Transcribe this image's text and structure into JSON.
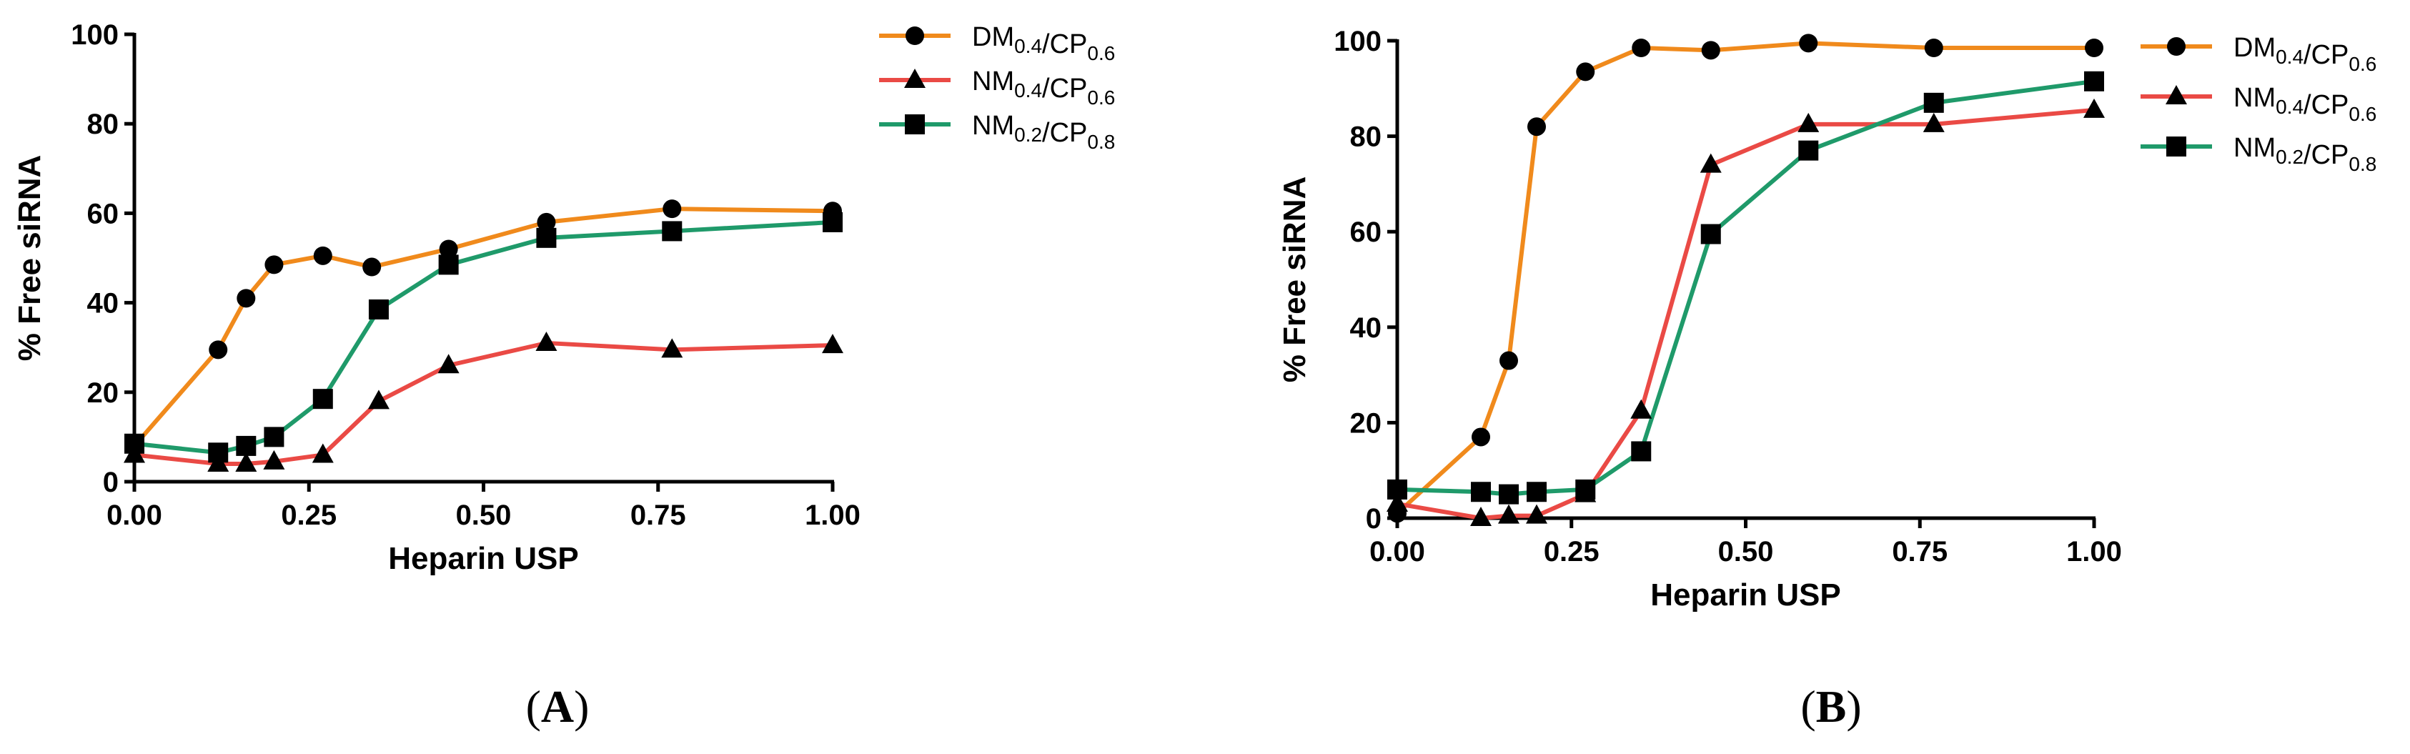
{
  "chart_data": [
    {
      "type": "line",
      "panel_label": "(A)",
      "panel_label_letter": "A",
      "xlabel": "Heparin USP",
      "ylabel": "% Free siRNA",
      "xlim": [
        0,
        1
      ],
      "ylim": [
        0,
        100
      ],
      "x_ticks": [
        "0.00",
        "0.25",
        "0.50",
        "0.75",
        "1.00"
      ],
      "y_ticks": [
        "0",
        "20",
        "40",
        "60",
        "80",
        "100"
      ],
      "legend_position": "top-right",
      "series": [
        {
          "name": "DM0.4/CP0.6",
          "label_parts": [
            [
              "DM",
              "0.4"
            ],
            [
              "/CP",
              "0.6"
            ]
          ],
          "marker": "circle",
          "color": "#f08a1c",
          "points": [
            [
              0,
              8
            ],
            [
              0.12,
              29.5
            ],
            [
              0.16,
              41
            ],
            [
              0.2,
              48.5
            ],
            [
              0.27,
              50.5
            ],
            [
              0.34,
              48
            ],
            [
              0.45,
              52
            ],
            [
              0.59,
              58
            ],
            [
              0.77,
              61
            ],
            [
              1.0,
              60.5
            ]
          ]
        },
        {
          "name": "NM0.4/CP0.6",
          "label_parts": [
            [
              "NM",
              "0.4"
            ],
            [
              "/CP",
              "0.6"
            ]
          ],
          "marker": "triangle",
          "color": "#ea4a45",
          "points": [
            [
              0,
              6
            ],
            [
              0.12,
              4
            ],
            [
              0.16,
              4
            ],
            [
              0.2,
              4.5
            ],
            [
              0.27,
              6
            ],
            [
              0.35,
              18
            ],
            [
              0.45,
              26
            ],
            [
              0.59,
              31
            ],
            [
              0.77,
              29.5
            ],
            [
              1.0,
              30.5
            ]
          ]
        },
        {
          "name": "NM0.2/CP0.8",
          "label_parts": [
            [
              "NM",
              "0.2"
            ],
            [
              "/CP",
              "0.8"
            ]
          ],
          "marker": "square",
          "color": "#1f9a6a",
          "points": [
            [
              0,
              8.5
            ],
            [
              0.12,
              6.5
            ],
            [
              0.16,
              8
            ],
            [
              0.2,
              10
            ],
            [
              0.27,
              18.5
            ],
            [
              0.35,
              38.5
            ],
            [
              0.45,
              48.5
            ],
            [
              0.59,
              54.5
            ],
            [
              0.77,
              56
            ],
            [
              1.0,
              58
            ]
          ]
        }
      ]
    },
    {
      "type": "line",
      "panel_label": "(B)",
      "panel_label_letter": "B",
      "xlabel": "Heparin USP",
      "ylabel": "% Free siRNA",
      "xlim": [
        0,
        1
      ],
      "ylim": [
        0,
        100
      ],
      "x_ticks": [
        "0.00",
        "0.25",
        "0.50",
        "0.75",
        "1.00"
      ],
      "y_ticks": [
        "0",
        "20",
        "40",
        "60",
        "80",
        "100"
      ],
      "legend_position": "top-right",
      "series": [
        {
          "name": "DM0.4/CP0.6",
          "label_parts": [
            [
              "DM",
              "0.4"
            ],
            [
              "/CP",
              "0.6"
            ]
          ],
          "marker": "circle",
          "color": "#f08a1c",
          "points": [
            [
              0,
              1
            ],
            [
              0.12,
              17
            ],
            [
              0.16,
              33
            ],
            [
              0.2,
              82
            ],
            [
              0.27,
              93.5
            ],
            [
              0.35,
              98.5
            ],
            [
              0.45,
              98
            ],
            [
              0.59,
              99.5
            ],
            [
              0.77,
              98.5
            ],
            [
              1.0,
              98.5
            ]
          ]
        },
        {
          "name": "NM0.4/CP0.6",
          "label_parts": [
            [
              "NM",
              "0.4"
            ],
            [
              "/CP",
              "0.6"
            ]
          ],
          "marker": "triangle",
          "color": "#ea4a45",
          "points": [
            [
              0,
              3
            ],
            [
              0.12,
              0
            ],
            [
              0.16,
              0.5
            ],
            [
              0.2,
              0.5
            ],
            [
              0.27,
              5
            ],
            [
              0.35,
              22.5
            ],
            [
              0.45,
              74
            ],
            [
              0.59,
              82.5
            ],
            [
              0.77,
              82.5
            ],
            [
              1.0,
              85.5
            ]
          ]
        },
        {
          "name": "NM0.2/CP0.8",
          "label_parts": [
            [
              "NM",
              "0.2"
            ],
            [
              "/CP",
              "0.8"
            ]
          ],
          "marker": "square",
          "color": "#1f9a6a",
          "points": [
            [
              0,
              6
            ],
            [
              0.12,
              5.5
            ],
            [
              0.16,
              5
            ],
            [
              0.2,
              5.5
            ],
            [
              0.27,
              6
            ],
            [
              0.35,
              14
            ],
            [
              0.45,
              59.5
            ],
            [
              0.59,
              77
            ],
            [
              0.77,
              87
            ],
            [
              1.0,
              91.5
            ]
          ]
        }
      ]
    }
  ]
}
